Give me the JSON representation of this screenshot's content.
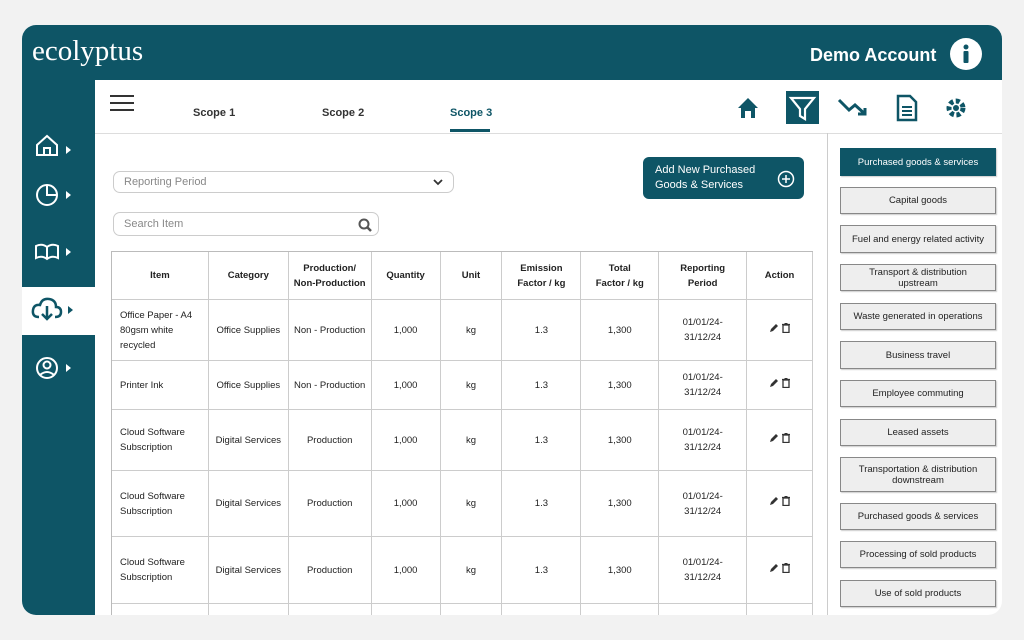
{
  "header": {
    "logo": "ecolyptus",
    "account": "Demo Account"
  },
  "tabs": [
    "Scope 1",
    "Scope 2",
    "Scope 3"
  ],
  "filters": {
    "reporting_period": "Reporting Period",
    "search": "Search Item"
  },
  "add_button": "Add New Purchased Goods & Services",
  "table": {
    "columns": [
      "Item",
      "Category",
      "Production/ Non-Production",
      "Quantity",
      "Unit",
      "Emission Factor / kg",
      "Total Factor / kg",
      "Reporting Period",
      "Action"
    ],
    "rows": [
      [
        "Office Paper - A4 80gsm white recycled",
        "Office Supplies",
        "Non - Production",
        "1,000",
        "kg",
        "1.3",
        "1,300",
        "01/01/24-31/12/24"
      ],
      [
        "Printer Ink",
        "Office Supplies",
        "Non - Production",
        "1,000",
        "kg",
        "1.3",
        "1,300",
        "01/01/24-31/12/24"
      ],
      [
        "Cloud Software Subscription",
        "Digital Services",
        "Production",
        "1,000",
        "kg",
        "1.3",
        "1,300",
        "01/01/24-31/12/24"
      ],
      [
        "Cloud Software Subscription",
        "Digital Services",
        "Production",
        "1,000",
        "kg",
        "1.3",
        "1,300",
        "01/01/24-31/12/24"
      ],
      [
        "Cloud Software Subscription",
        "Digital Services",
        "Production",
        "1,000",
        "kg",
        "1.3",
        "1,300",
        "01/01/24-31/12/24"
      ]
    ]
  },
  "categories": [
    "Purchased goods & services",
    "Capital goods",
    "Fuel and energy related activity",
    "Transport & distribution upstream",
    "Waste generated in operations",
    "Business travel",
    "Employee commuting",
    "Leased assets",
    "Transportation & distribution downstream",
    "Purchased goods & services",
    "Processing of sold products",
    "Use of sold products"
  ]
}
